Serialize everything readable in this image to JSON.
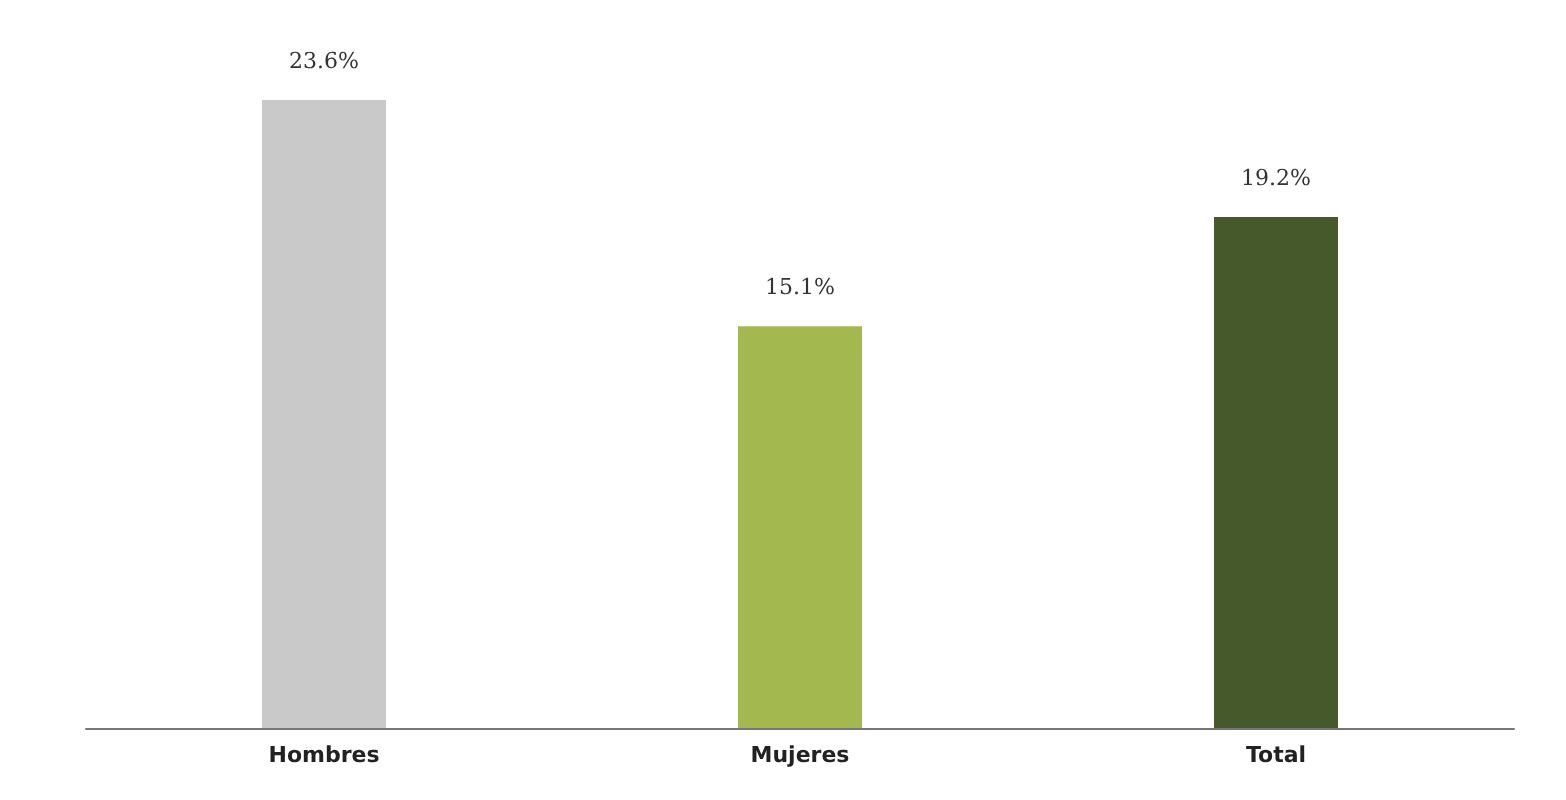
{
  "chart_data": {
    "type": "bar",
    "categories": [
      "Hombres",
      "Mujeres",
      "Total"
    ],
    "values": [
      23.6,
      15.1,
      19.2
    ],
    "colors": [
      "#c9c9c9",
      "#a3b84f",
      "#46592a"
    ],
    "value_labels": [
      "23.6%",
      "15.1%",
      "19.2%"
    ]
  }
}
